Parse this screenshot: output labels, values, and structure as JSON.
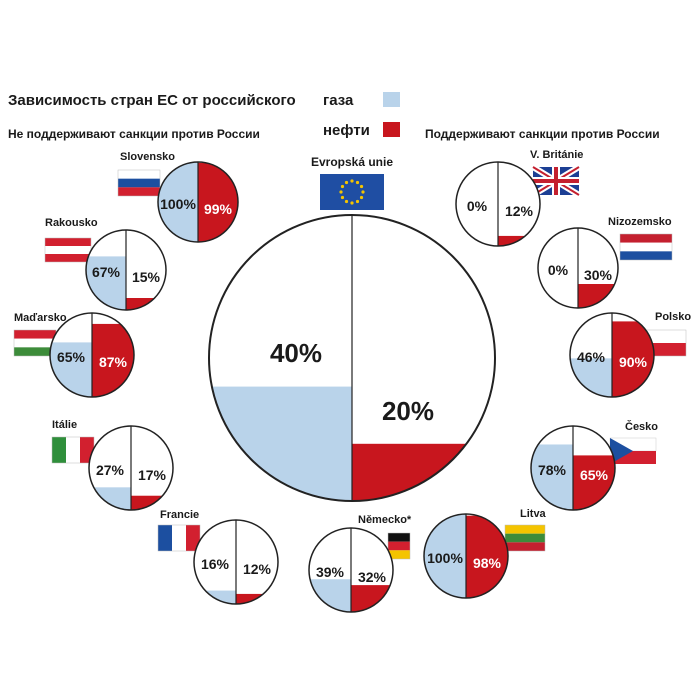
{
  "header": {
    "title": "Зависимость стран ЕС от российского",
    "legend_gas": "газа",
    "legend_oil": "нефти",
    "left_subtitle": "Не поддерживают санкции против России",
    "right_subtitle": "Поддерживают санкции против России"
  },
  "countries": [
    {
      "name": "Evropská unie",
      "gas": 40,
      "gas_label": "40%",
      "oil": 20,
      "oil_label": "20%"
    },
    {
      "name": "Slovensko",
      "gas": 100,
      "gas_label": "100%",
      "oil": 99,
      "oil_label": "99%"
    },
    {
      "name": "Rakousko",
      "gas": 67,
      "gas_label": "67%",
      "oil": 15,
      "oil_label": "15%"
    },
    {
      "name": "Maďarsko",
      "gas": 65,
      "gas_label": "65%",
      "oil": 87,
      "oil_label": "87%"
    },
    {
      "name": "Itálie",
      "gas": 27,
      "gas_label": "27%",
      "oil": 17,
      "oil_label": "17%"
    },
    {
      "name": "Francie",
      "gas": 16,
      "gas_label": "16%",
      "oil": 12,
      "oil_label": "12%"
    },
    {
      "name": "Německo*",
      "gas": 39,
      "gas_label": "39%",
      "oil": 32,
      "oil_label": "32%"
    },
    {
      "name": "V. Británie",
      "gas": 0,
      "gas_label": "0%",
      "oil": 12,
      "oil_label": "12%"
    },
    {
      "name": "Nizozemsko",
      "gas": 0,
      "gas_label": "0%",
      "oil": 30,
      "oil_label": "30%"
    },
    {
      "name": "Polsko",
      "gas": 46,
      "gas_label": "46%",
      "oil": 90,
      "oil_label": "90%"
    },
    {
      "name": "Česko",
      "gas": 78,
      "gas_label": "78%",
      "oil": 65,
      "oil_label": "65%"
    },
    {
      "name": "Litva",
      "gas": 100,
      "gas_label": "100%",
      "oil": 98,
      "oil_label": "98%"
    }
  ]
}
